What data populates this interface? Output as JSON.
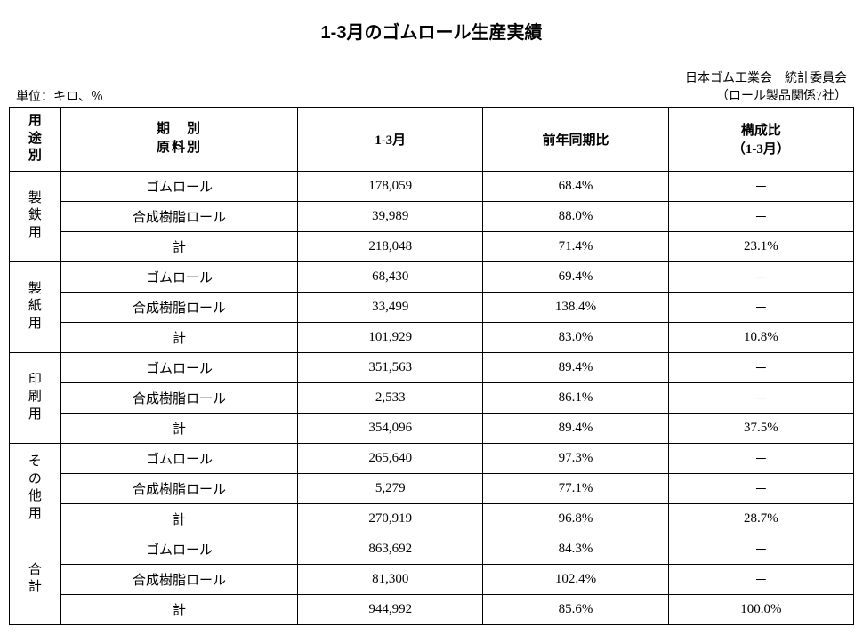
{
  "title": "1-3月のゴムロール生産実績",
  "unit_label": "単位：キロ、％",
  "source_line1": "日本ゴム工業会　統計委員会",
  "source_line2": "（ロール製品関係7社）",
  "columns": {
    "use": "用\n途\n別",
    "period_material_l1": "期　別",
    "period_material_l2": "原料別",
    "period": "1-3月",
    "yoy": "前年同期比",
    "ratio_l1": "構成比",
    "ratio_l2": "（1-3月）"
  },
  "material_labels": {
    "rubber": "ゴムロール",
    "resin": "合成樹脂ロール",
    "total": "計"
  },
  "groups": [
    {
      "name": "製鉄用",
      "name_chars": [
        "製",
        "鉄",
        "用"
      ],
      "rows": [
        {
          "mat": "rubber",
          "val": "178,059",
          "yoy": "68.4%",
          "ratio": "－"
        },
        {
          "mat": "resin",
          "val": "39,989",
          "yoy": "88.0%",
          "ratio": "－"
        },
        {
          "mat": "total",
          "val": "218,048",
          "yoy": "71.4%",
          "ratio": "23.1%"
        }
      ]
    },
    {
      "name": "製紙用",
      "name_chars": [
        "製",
        "紙",
        "用"
      ],
      "rows": [
        {
          "mat": "rubber",
          "val": "68,430",
          "yoy": "69.4%",
          "ratio": "－"
        },
        {
          "mat": "resin",
          "val": "33,499",
          "yoy": "138.4%",
          "ratio": "－"
        },
        {
          "mat": "total",
          "val": "101,929",
          "yoy": "83.0%",
          "ratio": "10.8%"
        }
      ]
    },
    {
      "name": "印刷用",
      "name_chars": [
        "印",
        "刷",
        "用"
      ],
      "rows": [
        {
          "mat": "rubber",
          "val": "351,563",
          "yoy": "89.4%",
          "ratio": "－"
        },
        {
          "mat": "resin",
          "val": "2,533",
          "yoy": "86.1%",
          "ratio": "－"
        },
        {
          "mat": "total",
          "val": "354,096",
          "yoy": "89.4%",
          "ratio": "37.5%"
        }
      ]
    },
    {
      "name": "その他用",
      "name_chars": [
        "そ",
        "の",
        "他",
        "用"
      ],
      "rows": [
        {
          "mat": "rubber",
          "val": "265,640",
          "yoy": "97.3%",
          "ratio": "－"
        },
        {
          "mat": "resin",
          "val": "5,279",
          "yoy": "77.1%",
          "ratio": "－"
        },
        {
          "mat": "total",
          "val": "270,919",
          "yoy": "96.8%",
          "ratio": "28.7%"
        }
      ]
    },
    {
      "name": "合計",
      "name_chars": [
        "合",
        "計"
      ],
      "rows": [
        {
          "mat": "rubber",
          "val": "863,692",
          "yoy": "84.3%",
          "ratio": "－"
        },
        {
          "mat": "resin",
          "val": "81,300",
          "yoy": "102.4%",
          "ratio": "－"
        },
        {
          "mat": "total",
          "val": "944,992",
          "yoy": "85.6%",
          "ratio": "100.0%"
        }
      ]
    }
  ],
  "style": {
    "text_color": "#000000",
    "background": "#ffffff",
    "border_color": "#000000",
    "title_fontsize": 20,
    "body_fontsize": 15,
    "meta_fontsize": 14
  }
}
